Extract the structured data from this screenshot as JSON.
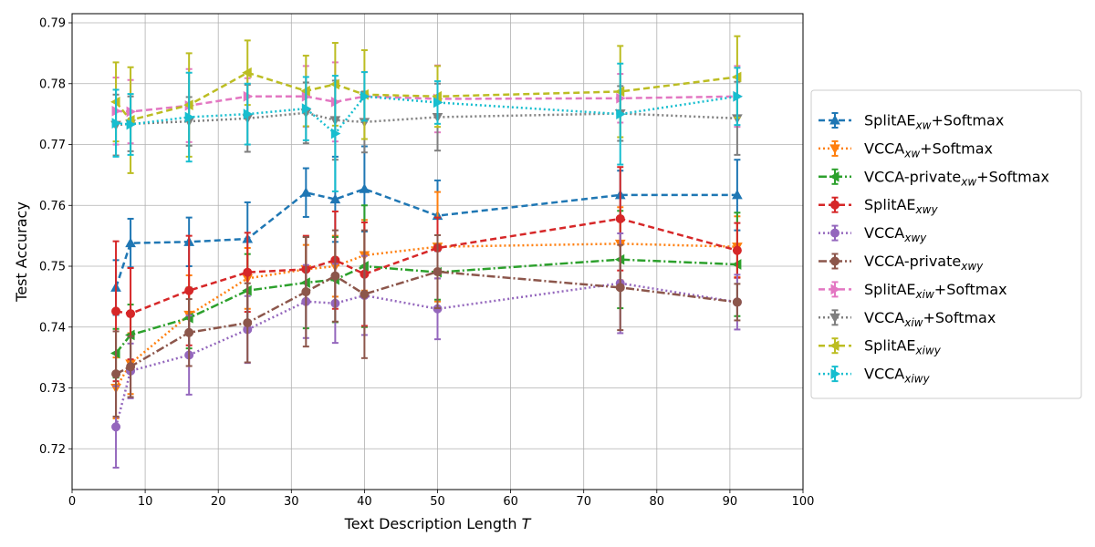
{
  "chart_data": {
    "type": "line",
    "xlabel": "Text Description Length",
    "xlabel_var": "T",
    "ylabel": "Test Accuracy",
    "xlim": [
      0,
      100
    ],
    "ylim": [
      0.7133,
      0.7915
    ],
    "xticks": [
      0,
      10,
      20,
      30,
      40,
      50,
      60,
      70,
      80,
      90,
      100
    ],
    "yticks": [
      0.72,
      0.73,
      0.74,
      0.75,
      0.76,
      0.77,
      0.78,
      0.79
    ],
    "grid": true,
    "legend_position": "right",
    "x": [
      6,
      8,
      16,
      24,
      32,
      36,
      40,
      50,
      75,
      91
    ],
    "series": [
      {
        "name": "SplitAE",
        "sub": "xw",
        "suffix": "+Softmax",
        "color": "#1f77b4",
        "dash": "7,4",
        "marker": "tri-up",
        "y": [
          0.7465,
          0.7538,
          0.754,
          0.7545,
          0.7621,
          0.761,
          0.7627,
          0.7583,
          0.7617,
          0.7617
        ],
        "err": [
          0.0045,
          0.004,
          0.004,
          0.006,
          0.004,
          0.007,
          0.007,
          0.0058,
          0.004,
          0.0058
        ]
      },
      {
        "name": "VCCA",
        "sub": "xw",
        "suffix": "+Softmax",
        "color": "#ff7f0e",
        "dash": "2,3",
        "marker": "tri-down",
        "y": [
          0.73,
          0.734,
          0.742,
          0.748,
          0.7495,
          0.75,
          0.7518,
          0.7532,
          0.7537,
          0.7532
        ],
        "err": [
          0.005,
          0.005,
          0.0065,
          0.005,
          0.004,
          0.005,
          0.0058,
          0.009,
          0.006,
          0.005
        ]
      },
      {
        "name": "VCCA-private",
        "sub": "xw",
        "suffix": "+Softmax",
        "color": "#2ca02c",
        "dash": "9,3,2,3",
        "marker": "tri-left",
        "y": [
          0.7357,
          0.7387,
          0.7415,
          0.746,
          0.7473,
          0.7478,
          0.75,
          0.749,
          0.7511,
          0.7503
        ],
        "err": [
          0.004,
          0.005,
          0.005,
          0.006,
          0.0075,
          0.007,
          0.01,
          0.0045,
          0.008,
          0.0085
        ]
      },
      {
        "name": "SplitAE",
        "sub": "xwy",
        "suffix": "",
        "color": "#d62728",
        "dash": "7,4",
        "marker": "circle",
        "y": [
          0.7426,
          0.7422,
          0.746,
          0.749,
          0.7495,
          0.751,
          0.7487,
          0.753,
          0.7578,
          0.7526
        ],
        "err": [
          0.0115,
          0.0075,
          0.009,
          0.0065,
          0.0055,
          0.008,
          0.0085,
          0.005,
          0.0085,
          0.0045
        ]
      },
      {
        "name": "VCCA",
        "sub": "xwy",
        "suffix": "",
        "color": "#9467bd",
        "dash": "2,3",
        "marker": "circle",
        "y": [
          0.7236,
          0.7328,
          0.7354,
          0.7396,
          0.7442,
          0.7439,
          0.7452,
          0.743,
          0.7472,
          0.7441
        ],
        "err": [
          0.0067,
          0.0045,
          0.0065,
          0.0055,
          0.006,
          0.0065,
          0.0065,
          0.005,
          0.0082,
          0.0045
        ]
      },
      {
        "name": "VCCA-private",
        "sub": "xwy",
        "suffix": "",
        "color": "#8c564b",
        "dash": "9,3,2,3",
        "marker": "circle",
        "y": [
          0.7323,
          0.7335,
          0.7391,
          0.7407,
          0.7458,
          0.7484,
          0.7454,
          0.7491,
          0.7465,
          0.7441
        ],
        "err": [
          0.007,
          0.005,
          0.0055,
          0.0065,
          0.009,
          0.0075,
          0.0105,
          0.006,
          0.007,
          0.003
        ]
      },
      {
        "name": "SplitAE",
        "sub": "xiw",
        "suffix": "+Softmax",
        "color": "#e377c2",
        "dash": "7,4",
        "marker": "tri-right",
        "y": [
          0.7755,
          0.7754,
          0.7764,
          0.7779,
          0.7779,
          0.777,
          0.7779,
          0.7775,
          0.7776,
          0.7779
        ],
        "err": [
          0.0055,
          0.0052,
          0.006,
          0.003,
          0.005,
          0.0065,
          0.004,
          0.0055,
          0.004,
          0.005
        ]
      },
      {
        "name": "VCCA",
        "sub": "xiw",
        "suffix": "+Softmax",
        "color": "#7f7f7f",
        "dash": "2,3",
        "marker": "tri-down",
        "y": [
          0.7732,
          0.7734,
          0.7738,
          0.7743,
          0.7752,
          0.774,
          0.7737,
          0.7745,
          0.7751,
          0.7743
        ],
        "err": [
          0.005,
          0.0045,
          0.004,
          0.0055,
          0.005,
          0.0065,
          0.005,
          0.0055,
          0.0045,
          0.006
        ]
      },
      {
        "name": "SplitAE",
        "sub": "xiwy",
        "suffix": "",
        "color": "#bcbd22",
        "dash": "7,4",
        "marker": "tri-left",
        "y": [
          0.777,
          0.774,
          0.7765,
          0.7818,
          0.7788,
          0.7799,
          0.7782,
          0.7779,
          0.7787,
          0.7811
        ],
        "err": [
          0.0065,
          0.0087,
          0.0085,
          0.0053,
          0.0058,
          0.0068,
          0.0073,
          0.005,
          0.0075,
          0.0067
        ]
      },
      {
        "name": "VCCA",
        "sub": "xiwy",
        "suffix": "",
        "color": "#17becf",
        "dash": "2,3",
        "marker": "tri-right",
        "y": [
          0.7735,
          0.7733,
          0.7745,
          0.775,
          0.7759,
          0.7718,
          0.7779,
          0.7769,
          0.775,
          0.7779
        ],
        "err": [
          0.0055,
          0.005,
          0.0073,
          0.005,
          0.0052,
          0.0095,
          0.004,
          0.0035,
          0.0083,
          0.0047
        ]
      }
    ]
  }
}
